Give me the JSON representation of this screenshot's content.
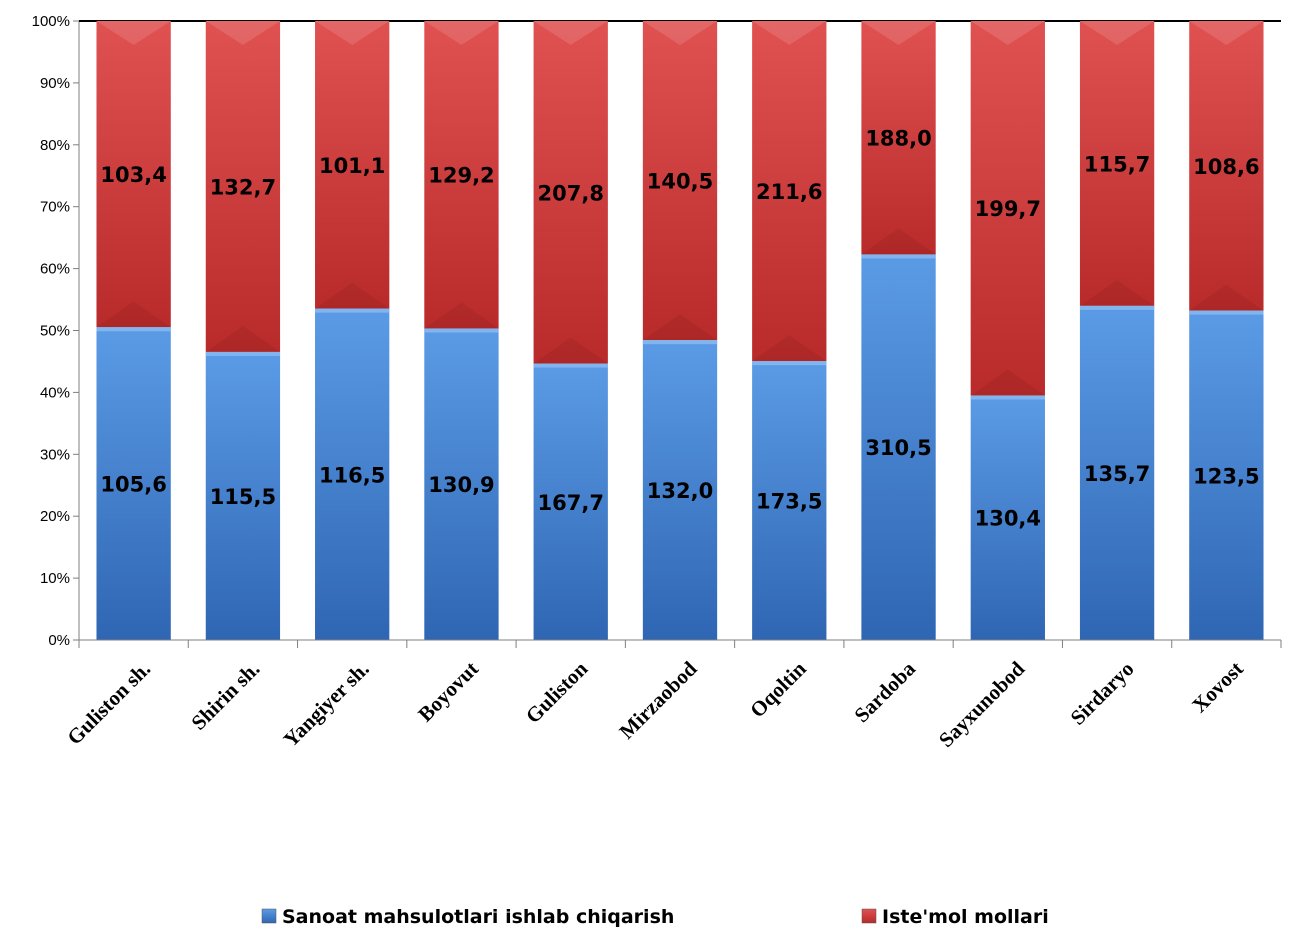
{
  "chart_data": {
    "type": "bar",
    "stacked": "percent",
    "categories": [
      "Guliston sh.",
      "Shirin sh.",
      "Yangiyer sh.",
      "Boyovut",
      "Guliston",
      "Mirzaobod",
      "Oqoltin",
      "Sardoba",
      "Sayxunobod",
      "Sirdaryo",
      "Xovost"
    ],
    "series": [
      {
        "name": "Sanoat mahsulotlari ishlab chiqarish",
        "color": "#4a86d6",
        "values": [
          105.6,
          115.5,
          116.5,
          130.9,
          167.7,
          132.0,
          173.5,
          310.5,
          130.4,
          135.7,
          123.5
        ],
        "labels": [
          "105,6",
          "115,5",
          "116,5",
          "130,9",
          "167,7",
          "132,0",
          "173,5",
          "310,5",
          "130,4",
          "135,7",
          "123,5"
        ]
      },
      {
        "name": "Iste'mol mollari",
        "color": "#d23c3c",
        "values": [
          103.4,
          132.7,
          101.1,
          129.2,
          207.8,
          140.5,
          211.6,
          188.0,
          199.7,
          115.7,
          108.6
        ],
        "labels": [
          "103,4",
          "132,7",
          "101,1",
          "129,2",
          "207,8",
          "140,5",
          "211,6",
          "188,0",
          "199,7",
          "115,7",
          "108,6"
        ]
      }
    ],
    "y_ticks": [
      "0%",
      "10%",
      "20%",
      "30%",
      "40%",
      "50%",
      "60%",
      "70%",
      "80%",
      "90%",
      "100%"
    ],
    "ylim": [
      0,
      100
    ],
    "grid": false,
    "legend": "bottom"
  }
}
